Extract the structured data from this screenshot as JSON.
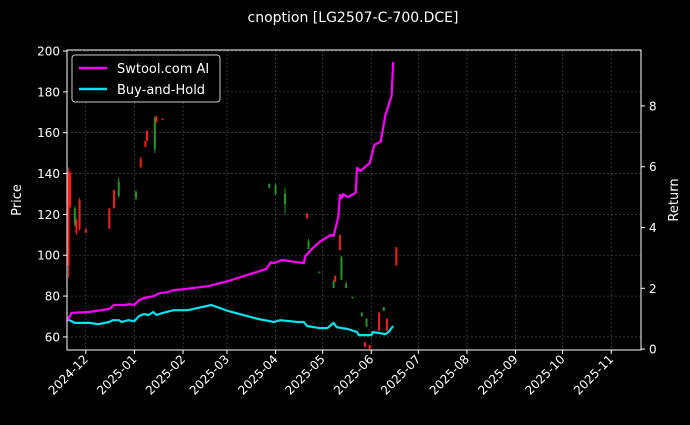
{
  "chart_data": {
    "type": "line",
    "title": "cnoption [LG2507-C-700.DCE]",
    "ylabel": "Price",
    "y2label": "Return",
    "xlim": [
      "2024-11-19",
      "2025-11-20"
    ],
    "ylim": [
      53.6,
      200.5
    ],
    "y2lim": [
      -0.03,
      9.84
    ],
    "grid": true,
    "legend_position": "top-left",
    "x_ticks": [
      "2024-12",
      "2025-01",
      "2025-02",
      "2025-03",
      "2025-04",
      "2025-05",
      "2025-06",
      "2025-07",
      "2025-08",
      "2025-09",
      "2025-10",
      "2025-11"
    ],
    "y_ticks": [
      60,
      80,
      100,
      120,
      140,
      160,
      180,
      200
    ],
    "y2_ticks": [
      0,
      2,
      4,
      6,
      8
    ],
    "colors": {
      "up": "#1f9a1f",
      "down": "#ff1a1a",
      "ai": "#ff00ff",
      "bh": "#00e5ee",
      "grid": "#555555"
    },
    "candles": [
      {
        "date": "2024-11-20",
        "open": 141,
        "high": 143,
        "low": 89,
        "close": 95
      },
      {
        "date": "2024-11-21",
        "open": 140,
        "high": 141,
        "low": 123,
        "close": 124
      },
      {
        "date": "2024-11-24",
        "open": 115,
        "high": 124,
        "low": 114,
        "close": 123
      },
      {
        "date": "2024-11-25",
        "open": 117,
        "high": 118,
        "low": 110,
        "close": 111
      },
      {
        "date": "2024-11-27",
        "open": 127,
        "high": 128,
        "low": 112,
        "close": 113
      },
      {
        "date": "2024-12-01",
        "open": 113,
        "high": 113,
        "low": 111,
        "close": 111
      },
      {
        "date": "2024-12-16",
        "open": 123,
        "high": 123,
        "low": 113,
        "close": 113
      },
      {
        "date": "2024-12-19",
        "open": 132,
        "high": 132,
        "low": 123,
        "close": 123
      },
      {
        "date": "2024-12-22",
        "open": 129,
        "high": 138,
        "low": 128,
        "close": 136
      },
      {
        "date": "2025-01-02",
        "open": 128,
        "high": 132,
        "low": 127,
        "close": 131
      },
      {
        "date": "2025-01-05",
        "open": 147,
        "high": 148,
        "low": 143,
        "close": 143
      },
      {
        "date": "2025-01-08",
        "open": 156,
        "high": 156,
        "low": 153,
        "close": 153
      },
      {
        "date": "2025-01-09",
        "open": 161,
        "high": 161,
        "low": 156,
        "close": 156
      },
      {
        "date": "2025-01-14",
        "open": 152,
        "high": 168,
        "low": 150,
        "close": 167
      },
      {
        "date": "2025-01-15",
        "open": 168,
        "high": 168,
        "low": 165,
        "close": 165
      },
      {
        "date": "2025-01-19",
        "open": 167,
        "high": 167,
        "low": 166.5,
        "close": 166.5
      },
      {
        "date": "2025-03-28",
        "open": 133,
        "high": 135,
        "low": 133,
        "close": 135
      },
      {
        "date": "2025-04-01",
        "open": 130,
        "high": 135,
        "low": 129.5,
        "close": 134
      },
      {
        "date": "2025-04-07",
        "open": 125,
        "high": 133,
        "low": 120,
        "close": 130
      },
      {
        "date": "2025-04-21",
        "open": 120.5,
        "high": 120.7,
        "low": 118,
        "close": 118
      },
      {
        "date": "2025-04-22",
        "open": 103,
        "high": 108,
        "low": 103,
        "close": 107
      },
      {
        "date": "2025-04-29",
        "open": 91.5,
        "high": 92,
        "low": 91.5,
        "close": 92
      },
      {
        "date": "2025-05-08",
        "open": 84,
        "high": 88,
        "low": 84,
        "close": 87
      },
      {
        "date": "2025-05-09",
        "open": 90,
        "high": 90,
        "low": 87,
        "close": 87
      },
      {
        "date": "2025-05-12",
        "open": 110,
        "high": 110,
        "low": 102.5,
        "close": 102.5
      },
      {
        "date": "2025-05-13",
        "open": 88,
        "high": 99.6,
        "low": 88,
        "close": 99
      },
      {
        "date": "2025-05-16",
        "open": 84,
        "high": 87,
        "low": 84,
        "close": 86
      },
      {
        "date": "2025-05-20",
        "open": 79.3,
        "high": 79.6,
        "low": 79.3,
        "close": 79.6
      },
      {
        "date": "2025-05-26",
        "open": 70,
        "high": 72,
        "low": 70,
        "close": 72
      },
      {
        "date": "2025-05-28",
        "open": 57.5,
        "high": 57.5,
        "low": 55,
        "close": 55
      },
      {
        "date": "2025-05-29",
        "open": 65,
        "high": 69,
        "low": 65,
        "close": 69
      },
      {
        "date": "2025-05-31",
        "open": 56,
        "high": 56,
        "low": 54,
        "close": 54
      },
      {
        "date": "2025-06-06",
        "open": 72,
        "high": 72,
        "low": 63,
        "close": 63
      },
      {
        "date": "2025-06-09",
        "open": 72.7,
        "high": 74.6,
        "low": 72.7,
        "close": 74.6
      },
      {
        "date": "2025-06-11",
        "open": 69,
        "high": 69,
        "low": 63,
        "close": 63
      },
      {
        "date": "2025-06-17",
        "open": 104,
        "high": 104,
        "low": 95,
        "close": 95
      }
    ],
    "series": [
      {
        "name": "Swtool.com AI",
        "axis": "right",
        "points": [
          [
            "2024-11-19",
            0.92
          ],
          [
            "2024-11-22",
            1.19
          ],
          [
            "2024-12-03",
            1.22
          ],
          [
            "2024-12-16",
            1.32
          ],
          [
            "2024-12-19",
            1.45
          ],
          [
            "2024-12-26",
            1.45
          ],
          [
            "2024-12-29",
            1.48
          ],
          [
            "2025-01-01",
            1.45
          ],
          [
            "2025-01-04",
            1.61
          ],
          [
            "2025-01-07",
            1.68
          ],
          [
            "2025-01-13",
            1.74
          ],
          [
            "2025-01-17",
            1.84
          ],
          [
            "2025-01-23",
            1.88
          ],
          [
            "2025-01-26",
            1.94
          ],
          [
            "2025-02-01",
            1.97
          ],
          [
            "2025-02-17",
            2.07
          ],
          [
            "2025-03-02",
            2.24
          ],
          [
            "2025-03-14",
            2.44
          ],
          [
            "2025-03-26",
            2.63
          ],
          [
            "2025-03-29",
            2.86
          ],
          [
            "2025-03-31",
            2.83
          ],
          [
            "2025-04-05",
            2.93
          ],
          [
            "2025-04-15",
            2.86
          ],
          [
            "2025-04-19",
            2.83
          ],
          [
            "2025-04-20",
            3.06
          ],
          [
            "2025-04-24",
            3.29
          ],
          [
            "2025-04-29",
            3.52
          ],
          [
            "2025-05-06",
            3.75
          ],
          [
            "2025-05-08",
            3.72
          ],
          [
            "2025-05-11",
            4.35
          ],
          [
            "2025-05-12",
            5.07
          ],
          [
            "2025-05-13",
            4.97
          ],
          [
            "2025-05-14",
            5.1
          ],
          [
            "2025-05-17",
            5.0
          ],
          [
            "2025-05-22",
            5.14
          ],
          [
            "2025-05-23",
            5.96
          ],
          [
            "2025-05-25",
            5.86
          ],
          [
            "2025-05-31",
            6.12
          ],
          [
            "2025-06-03",
            6.72
          ],
          [
            "2025-06-07",
            6.82
          ],
          [
            "2025-06-10",
            7.7
          ],
          [
            "2025-06-14",
            8.33
          ],
          [
            "2025-06-15",
            9.45
          ]
        ]
      },
      {
        "name": "Buy-and-Hold",
        "axis": "right",
        "points": [
          [
            "2024-11-19",
            0.99
          ],
          [
            "2024-11-24",
            0.86
          ],
          [
            "2024-12-03",
            0.86
          ],
          [
            "2024-12-09",
            0.82
          ],
          [
            "2024-12-16",
            0.89
          ],
          [
            "2024-12-18",
            0.95
          ],
          [
            "2024-12-22",
            0.95
          ],
          [
            "2024-12-24",
            0.89
          ],
          [
            "2024-12-28",
            0.95
          ],
          [
            "2025-01-01",
            0.92
          ],
          [
            "2025-01-04",
            1.09
          ],
          [
            "2025-01-07",
            1.15
          ],
          [
            "2025-01-10",
            1.12
          ],
          [
            "2025-01-13",
            1.22
          ],
          [
            "2025-01-15",
            1.12
          ],
          [
            "2025-01-19",
            1.19
          ],
          [
            "2025-01-26",
            1.28
          ],
          [
            "2025-02-04",
            1.28
          ],
          [
            "2025-02-13",
            1.38
          ],
          [
            "2025-02-19",
            1.45
          ],
          [
            "2025-03-02",
            1.25
          ],
          [
            "2025-03-21",
            0.99
          ],
          [
            "2025-03-28",
            0.92
          ],
          [
            "2025-03-31",
            0.89
          ],
          [
            "2025-04-04",
            0.95
          ],
          [
            "2025-04-15",
            0.89
          ],
          [
            "2025-04-19",
            0.89
          ],
          [
            "2025-04-21",
            0.76
          ],
          [
            "2025-04-29",
            0.69
          ],
          [
            "2025-05-04",
            0.69
          ],
          [
            "2025-05-08",
            0.86
          ],
          [
            "2025-05-10",
            0.72
          ],
          [
            "2025-05-17",
            0.66
          ],
          [
            "2025-05-23",
            0.56
          ],
          [
            "2025-05-24",
            0.46
          ],
          [
            "2025-05-28",
            0.46
          ],
          [
            "2025-06-01",
            0.46
          ],
          [
            "2025-06-02",
            0.56
          ],
          [
            "2025-06-06",
            0.53
          ],
          [
            "2025-06-10",
            0.49
          ],
          [
            "2025-06-12",
            0.56
          ],
          [
            "2025-06-15",
            0.76
          ]
        ]
      }
    ]
  }
}
